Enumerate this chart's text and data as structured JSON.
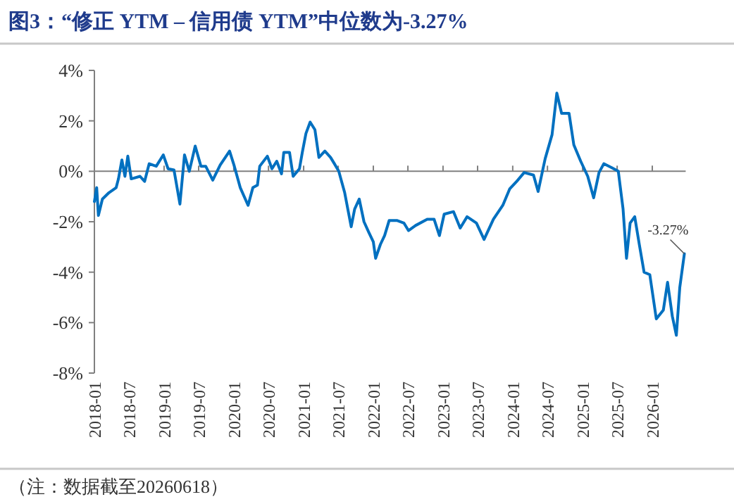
{
  "chart_data": {
    "type": "line",
    "title": "图3：“修正 YTM – 信用债 YTM”中位数为-3.27%",
    "annotations": [
      {
        "text": "-3.27%",
        "x": "2026-06-18",
        "y": -3.27
      },
      "（注：数据截至20260618）"
    ],
    "x": [
      "2018-01-01",
      "2018-01-13",
      "2018-01-22",
      "2018-02-12",
      "2018-03-18",
      "2018-04-25",
      "2018-05-07",
      "2018-05-25",
      "2018-06-10",
      "2018-06-25",
      "2018-07-13",
      "2018-08-28",
      "2018-09-21",
      "2018-10-15",
      "2018-11-21",
      "2018-12-28",
      "2019-01-22",
      "2019-02-22",
      "2019-03-25",
      "2019-04-18",
      "2019-05-13",
      "2019-06-13",
      "2019-07-13",
      "2019-08-07",
      "2019-09-13",
      "2019-10-22",
      "2019-12-10",
      "2020-01-04",
      "2020-02-04",
      "2020-03-16",
      "2020-04-10",
      "2020-05-04",
      "2020-05-16",
      "2020-06-25",
      "2020-07-19",
      "2020-08-13",
      "2020-09-07",
      "2020-09-19",
      "2020-10-19",
      "2020-11-07",
      "2020-12-10",
      "2020-12-25",
      "2021-01-13",
      "2021-02-04",
      "2021-03-01",
      "2021-03-22",
      "2021-04-22",
      "2021-05-22",
      "2021-06-15",
      "2021-07-04",
      "2021-08-04",
      "2021-09-07",
      "2021-09-25",
      "2021-10-19",
      "2021-11-13",
      "2021-12-07",
      "2022-01-01",
      "2022-01-13",
      "2022-02-07",
      "2022-03-01",
      "2022-03-25",
      "2022-05-04",
      "2022-06-10",
      "2022-07-04",
      "2022-08-10",
      "2022-10-10",
      "2022-11-15",
      "2022-12-13",
      "2023-01-07",
      "2023-02-25",
      "2023-04-01",
      "2023-05-07",
      "2023-06-25",
      "2023-08-04",
      "2023-09-22",
      "2023-11-10",
      "2023-12-16",
      "2024-01-22",
      "2024-03-01",
      "2024-04-19",
      "2024-05-13",
      "2024-06-19",
      "2024-07-25",
      "2024-08-19",
      "2024-09-13",
      "2024-10-22",
      "2024-11-16",
      "2024-12-22",
      "2025-01-28",
      "2025-02-28",
      "2025-03-28",
      "2025-04-22",
      "2025-06-01",
      "2025-07-07",
      "2025-08-01",
      "2025-08-19",
      "2025-09-07",
      "2025-10-01",
      "2025-10-25",
      "2025-11-19",
      "2025-12-19",
      "2026-01-22",
      "2026-02-28",
      "2026-03-22",
      "2026-04-16",
      "2026-05-07",
      "2026-05-25",
      "2026-06-18"
    ],
    "series": [
      {
        "color": "#0070c0",
        "values": [
          -1.2,
          -0.65,
          -1.75,
          -1.1,
          -0.85,
          -0.65,
          -0.3,
          0.45,
          -0.2,
          0.6,
          -0.3,
          -0.2,
          -0.4,
          0.3,
          0.2,
          0.65,
          0.1,
          0.05,
          -1.3,
          0.65,
          0,
          1.0,
          0.2,
          0.2,
          -0.35,
          0.25,
          0.8,
          0.2,
          -0.65,
          -1.35,
          -0.65,
          -0.55,
          0.2,
          0.6,
          0.1,
          0.4,
          -0.1,
          0.75,
          0.75,
          -0.2,
          0.1,
          0.75,
          1.5,
          1.95,
          1.65,
          0.55,
          0.8,
          0.55,
          0.25,
          0,
          -0.85,
          -2.2,
          -1.5,
          -1.1,
          -2.0,
          -2.4,
          -2.8,
          -3.45,
          -2.9,
          -2.55,
          -1.95,
          -1.95,
          -2.05,
          -2.35,
          -2.15,
          -1.9,
          -1.9,
          -2.55,
          -1.7,
          -1.6,
          -2.25,
          -1.8,
          -2.05,
          -2.7,
          -1.9,
          -1.35,
          -0.7,
          -0.4,
          -0.05,
          -0.15,
          -0.8,
          0.5,
          1.45,
          3.1,
          2.3,
          2.3,
          1.05,
          0.4,
          -0.2,
          -1.05,
          -0.05,
          0.3,
          0.15,
          0,
          -1.5,
          -3.45,
          -2.05,
          -1.8,
          -2.9,
          -4.0,
          -4.1,
          -5.85,
          -5.5,
          -4.4,
          -5.75,
          -6.5,
          -4.6,
          -3.27
        ]
      }
    ],
    "xlim": [
      "2018-01-01",
      "2026-06-25"
    ],
    "xticks": [
      "2018-01",
      "2018-07",
      "2019-01",
      "2019-07",
      "2020-01",
      "2020-07",
      "2021-01",
      "2021-07",
      "2022-01",
      "2022-07",
      "2023-01",
      "2023-07",
      "2024-01",
      "2024-07",
      "2025-01",
      "2025-07",
      "2026-01"
    ],
    "ylim": [
      -8,
      4
    ],
    "yticks": [
      {
        "value": -8,
        "label": "-8%"
      },
      {
        "value": -6,
        "label": "-6%"
      },
      {
        "value": -4,
        "label": "-4%"
      },
      {
        "value": -2,
        "label": "-2%"
      },
      {
        "value": 0,
        "label": "0%"
      },
      {
        "value": 2,
        "label": "2%"
      },
      {
        "value": 4,
        "label": "4%"
      }
    ]
  }
}
